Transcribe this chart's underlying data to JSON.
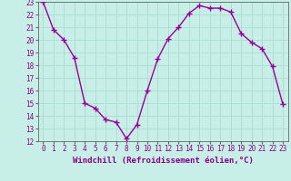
{
  "hours": [
    0,
    1,
    2,
    3,
    4,
    5,
    6,
    7,
    8,
    9,
    10,
    11,
    12,
    13,
    14,
    15,
    16,
    17,
    18,
    19,
    20,
    21,
    22,
    23
  ],
  "values": [
    23.0,
    20.8,
    20.0,
    18.6,
    15.0,
    14.6,
    13.7,
    13.5,
    12.2,
    13.3,
    16.0,
    18.5,
    20.1,
    21.0,
    22.1,
    22.7,
    22.5,
    22.5,
    22.2,
    20.5,
    19.8,
    19.3,
    17.9,
    14.9
  ],
  "line_color": "#990099",
  "marker": "+",
  "marker_size": 4,
  "bg_color": "#c8eee8",
  "grid_color": "#aaddcc",
  "axis_color": "#666666",
  "xlabel": "Windchill (Refroidissement éolien,°C)",
  "xlim": [
    -0.5,
    23.5
  ],
  "ylim": [
    12,
    23
  ],
  "xticks": [
    0,
    1,
    2,
    3,
    4,
    5,
    6,
    7,
    8,
    9,
    10,
    11,
    12,
    13,
    14,
    15,
    16,
    17,
    18,
    19,
    20,
    21,
    22,
    23
  ],
  "yticks": [
    12,
    13,
    14,
    15,
    16,
    17,
    18,
    19,
    20,
    21,
    22,
    23
  ],
  "xlabel_fontsize": 6.5,
  "tick_fontsize": 5.5,
  "line_width": 1.0,
  "separator_color": "#aa00aa"
}
